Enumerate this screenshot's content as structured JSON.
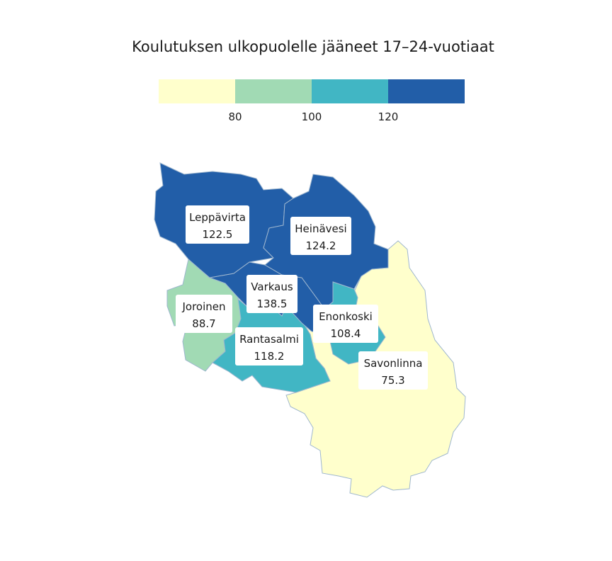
{
  "title": "Koulutuksen ulkopuolelle jääneet 17–24-vuotiaat",
  "legend": {
    "bins": [
      {
        "color": "#ffffcc"
      },
      {
        "color": "#a1dab4"
      },
      {
        "color": "#41b6c4"
      },
      {
        "color": "#225ea8"
      }
    ],
    "ticks": [
      "80",
      "100",
      "120"
    ]
  },
  "regions": [
    {
      "name": "Leppävirta",
      "value": "122.5",
      "color": "#225ea8"
    },
    {
      "name": "Heinävesi",
      "value": "124.2",
      "color": "#225ea8"
    },
    {
      "name": "Varkaus",
      "value": "138.5",
      "color": "#225ea8"
    },
    {
      "name": "Joroinen",
      "value": "88.7",
      "color": "#a1dab4"
    },
    {
      "name": "Enonkoski",
      "value": "108.4",
      "color": "#41b6c4"
    },
    {
      "name": "Rantasalmi",
      "value": "118.2",
      "color": "#41b6c4"
    },
    {
      "name": "Savonlinna",
      "value": "75.3",
      "color": "#ffffcc"
    }
  ]
}
